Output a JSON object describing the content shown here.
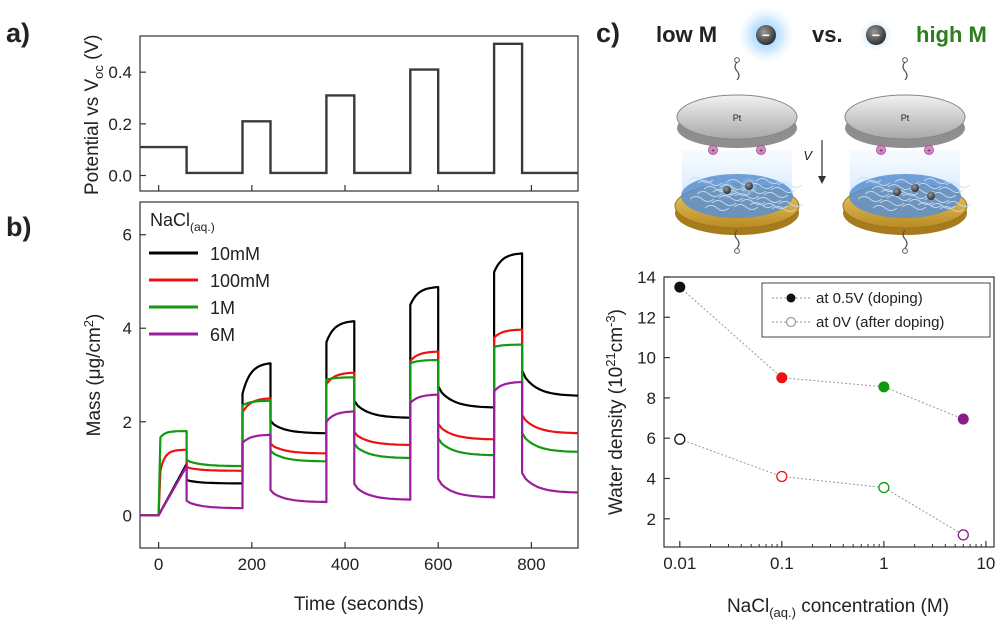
{
  "panel_labels": {
    "a": "a)",
    "b": "b)",
    "c": "c)"
  },
  "schematic": {
    "low_label": "low M",
    "vs_label": "vs.",
    "high_label": "high M",
    "electrode_label": "Pt",
    "arrow_label": "V",
    "ion_symbol": "−",
    "cation_symbol": "+",
    "high_color": "#2e7d1e"
  },
  "chart_data": [
    {
      "id": "a",
      "type": "line",
      "title": "",
      "xlabel": "",
      "ylabel": "Potential vs V",
      "ylabel_sub": "oc",
      "ylabel_unit": " (V)",
      "xlim": [
        -40,
        900
      ],
      "ylim": [
        -0.06,
        0.54
      ],
      "yticks": [
        0.0,
        0.2,
        0.4
      ],
      "ytick_labels": [
        "0.0",
        "0.2",
        "0.4"
      ],
      "xticks": [
        0,
        200,
        400,
        600,
        800
      ],
      "series": [
        {
          "color": "#3a3a3a",
          "x": [
            -40,
            0,
            0,
            60,
            60,
            180,
            180,
            240,
            240,
            360,
            360,
            420,
            420,
            540,
            540,
            600,
            600,
            720,
            720,
            780,
            780,
            900
          ],
          "y": [
            0.11,
            0.11,
            0.11,
            0.11,
            0.01,
            0.01,
            0.21,
            0.21,
            0.01,
            0.01,
            0.31,
            0.31,
            0.01,
            0.01,
            0.41,
            0.41,
            0.01,
            0.01,
            0.51,
            0.51,
            0.01,
            0.01
          ]
        }
      ]
    },
    {
      "id": "b",
      "type": "line",
      "title": "",
      "xlabel": "Time (seconds)",
      "ylabel": "Mass (μg/cm",
      "ylabel_sup": "2",
      "ylabel_tail": ")",
      "xlim": [
        -40,
        900
      ],
      "ylim": [
        -0.7,
        6.7
      ],
      "xticks": [
        0,
        200,
        400,
        600,
        800
      ],
      "yticks": [
        0,
        2,
        4,
        6
      ],
      "legend_title": "NaCl",
      "legend_title_sub": "(aq.)",
      "legend_position": "top-left",
      "steps": [
        {
          "start": 0,
          "end": 60
        },
        {
          "start": 180,
          "end": 240
        },
        {
          "start": 360,
          "end": 420
        },
        {
          "start": 540,
          "end": 600
        },
        {
          "start": 720,
          "end": 780
        }
      ],
      "series": [
        {
          "name": "10mM",
          "color": "#000000",
          "on_start": [
            0.1,
            2.6,
            3.7,
            4.5,
            5.2
          ],
          "on_end": [
            1.1,
            3.25,
            4.15,
            4.88,
            5.6
          ],
          "off_end": [
            0.68,
            1.75,
            2.08,
            2.3,
            2.55
          ]
        },
        {
          "name": "100mM",
          "color": "#ee1111",
          "on_start": [
            0.75,
            2.2,
            2.8,
            3.3,
            3.8
          ],
          "on_end": [
            1.4,
            2.5,
            3.05,
            3.5,
            3.97
          ],
          "off_end": [
            0.95,
            1.32,
            1.5,
            1.62,
            1.75
          ]
        },
        {
          "name": "1M",
          "color": "#119911",
          "on_start": [
            1.6,
            2.35,
            2.9,
            3.25,
            3.6
          ],
          "on_end": [
            1.8,
            2.45,
            2.95,
            3.32,
            3.65
          ],
          "off_end": [
            1.05,
            1.15,
            1.22,
            1.28,
            1.35
          ]
        },
        {
          "name": "6M",
          "color": "#9b1f9b",
          "on_start": [
            0.65,
            1.55,
            2.0,
            2.4,
            2.65
          ],
          "on_end": [
            1.05,
            1.72,
            2.22,
            2.58,
            2.85
          ],
          "off_end": [
            0.15,
            0.28,
            0.33,
            0.38,
            0.48
          ]
        }
      ]
    },
    {
      "id": "c",
      "type": "scatter",
      "title": "",
      "xlabel": "NaCl",
      "xlabel_sub": "(aq.)",
      "xlabel_tail": " concentration (M)",
      "ylabel": "Water density (10",
      "ylabel_sup1": "21",
      "ylabel_mid": "cm",
      "ylabel_sup2": "-3",
      "ylabel_tail": ")",
      "xscale": "log",
      "xlim": [
        0.007,
        12
      ],
      "ylim": [
        0.6,
        14.0
      ],
      "xticks": [
        0.01,
        0.1,
        1,
        10
      ],
      "xtick_labels": [
        "0.01",
        "0.1",
        "1",
        "10"
      ],
      "yticks": [
        2,
        4,
        6,
        8,
        10,
        12,
        14
      ],
      "legend_position": "top-right",
      "point_colors": [
        "#111111",
        "#ee1111",
        "#119911",
        "#8b1a8b"
      ],
      "series": [
        {
          "name": "at 0.5V (doping)",
          "marker": "filled",
          "x": [
            0.01,
            0.1,
            1,
            6
          ],
          "y": [
            13.5,
            9.0,
            8.55,
            6.95
          ]
        },
        {
          "name": "at 0V (after doping)",
          "marker": "open",
          "x": [
            0.01,
            0.1,
            1,
            6
          ],
          "y": [
            5.95,
            4.1,
            3.55,
            1.2
          ]
        }
      ]
    }
  ]
}
